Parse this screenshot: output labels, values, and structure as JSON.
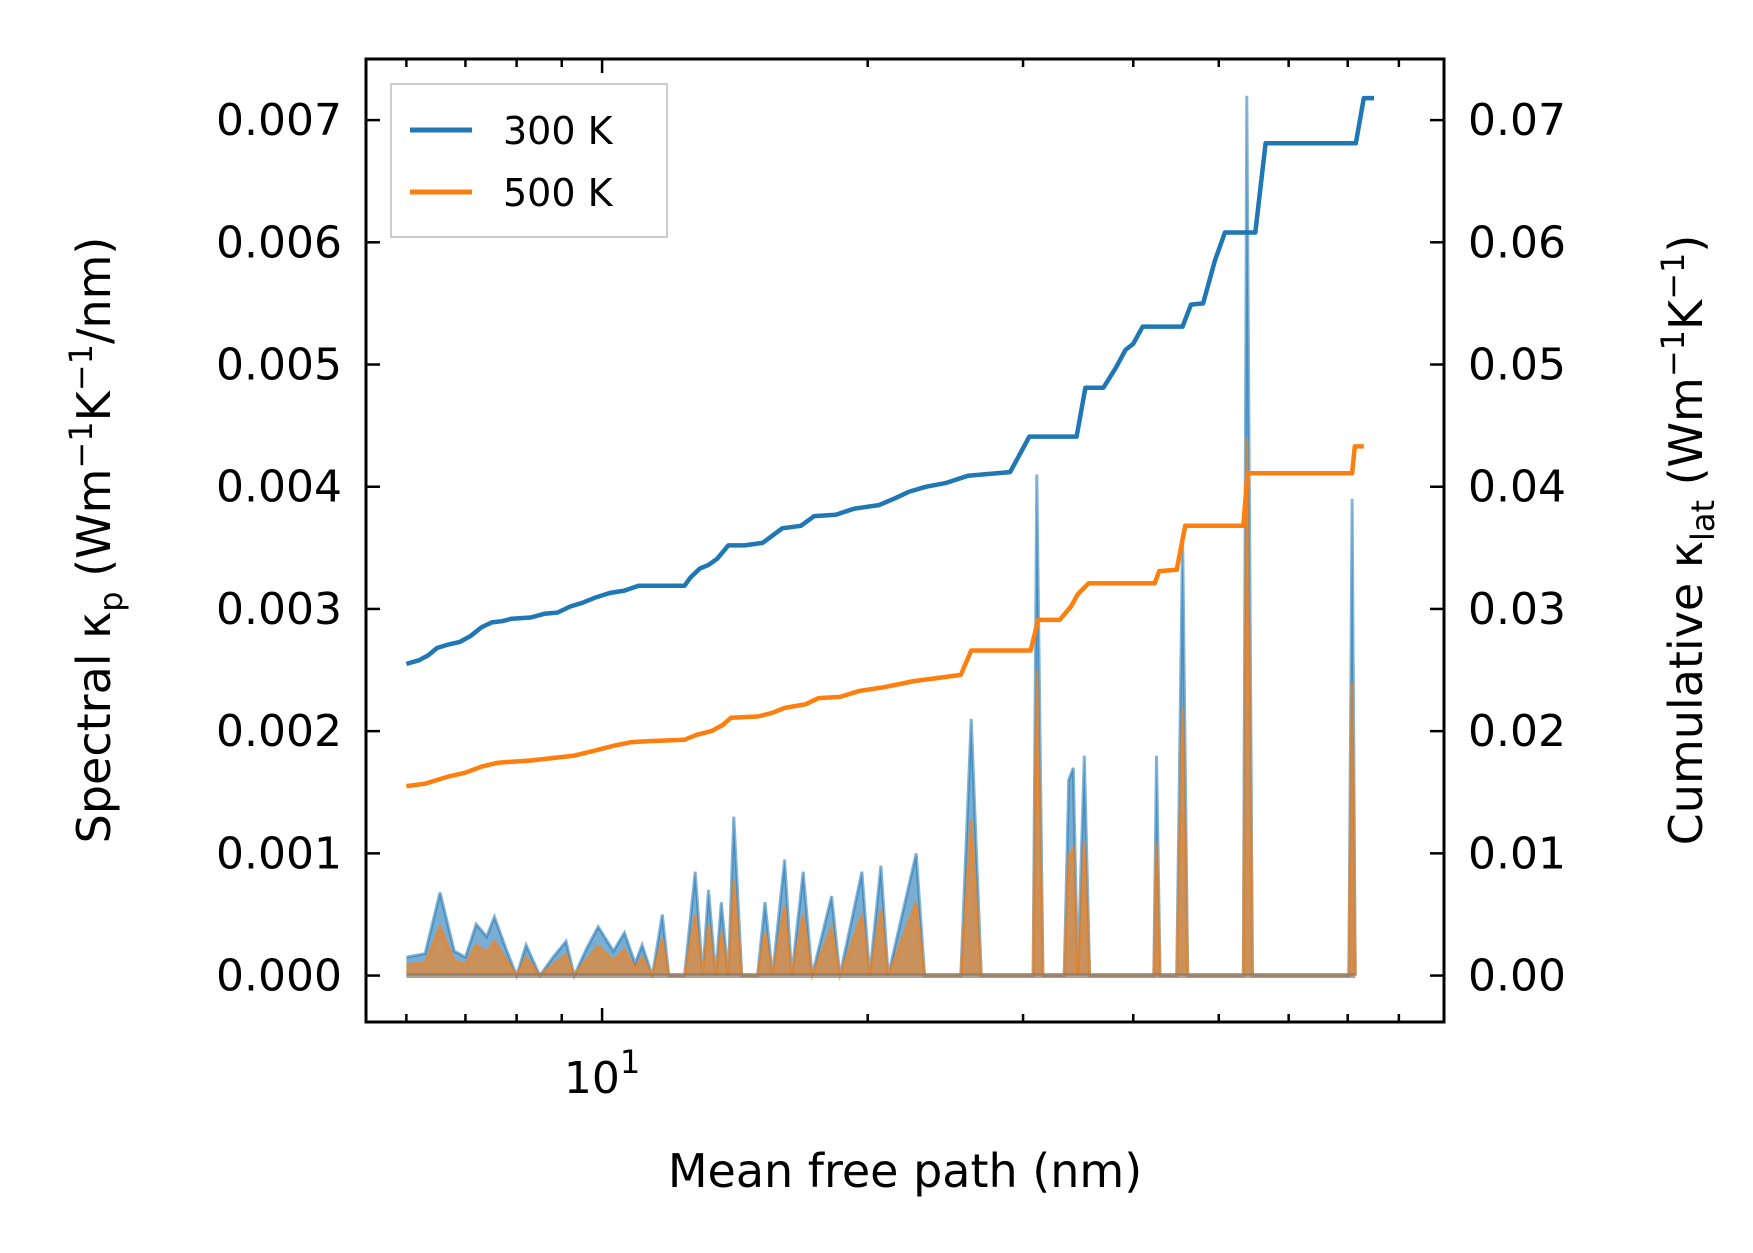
{
  "chart_data": {
    "type": "line",
    "xscale": "log",
    "xlim": [
      5.4,
      90
    ],
    "ylim": [
      -0.00038,
      0.0075
    ],
    "y2lim": [
      -0.0038,
      0.075
    ],
    "xlabel": "Mean free path (nm)",
    "ylabel_main": "Spectral κ",
    "ylabel_sub": "p",
    "ylabel_units_a": " (Wm",
    "ylabel_units_b": "−1",
    "ylabel_units_c": "K",
    "ylabel_units_d": "−1",
    "ylabel_units_e": "/nm)",
    "y2label_main": "Cumulative κ",
    "y2label_sub": "lat",
    "y2label_units_a": " (Wm",
    "y2label_units_b": "−1",
    "y2label_units_c": "K",
    "y2label_units_d": "−1",
    "y2label_units_e": ")",
    "x_tick_label_base": "10",
    "x_tick_label_exp": "1",
    "x_tick_value": 10,
    "y_ticks": [
      {
        "value": 0.0,
        "label": "0.000"
      },
      {
        "value": 0.001,
        "label": "0.001"
      },
      {
        "value": 0.002,
        "label": "0.002"
      },
      {
        "value": 0.003,
        "label": "0.003"
      },
      {
        "value": 0.004,
        "label": "0.004"
      },
      {
        "value": 0.005,
        "label": "0.005"
      },
      {
        "value": 0.006,
        "label": "0.006"
      },
      {
        "value": 0.007,
        "label": "0.007"
      }
    ],
    "y2_ticks": [
      {
        "value": 0.0,
        "label": "0.00"
      },
      {
        "value": 0.01,
        "label": "0.01"
      },
      {
        "value": 0.02,
        "label": "0.02"
      },
      {
        "value": 0.03,
        "label": "0.03"
      },
      {
        "value": 0.04,
        "label": "0.04"
      },
      {
        "value": 0.05,
        "label": "0.05"
      },
      {
        "value": 0.06,
        "label": "0.06"
      },
      {
        "value": 0.07,
        "label": "0.07"
      }
    ],
    "legend": {
      "position": "upper-left",
      "entries": [
        "300 K",
        "500 K"
      ]
    },
    "series": [
      {
        "name": "300 K",
        "color": "#1f77b4",
        "cumulative": [
          [
            6.0,
            0.0255
          ],
          [
            6.2,
            0.0258
          ],
          [
            6.35,
            0.0262
          ],
          [
            6.5,
            0.0268
          ],
          [
            6.7,
            0.0271
          ],
          [
            6.9,
            0.0273
          ],
          [
            7.1,
            0.0278
          ],
          [
            7.3,
            0.0285
          ],
          [
            7.5,
            0.0289
          ],
          [
            7.7,
            0.029
          ],
          [
            7.9,
            0.0292
          ],
          [
            8.3,
            0.0293
          ],
          [
            8.6,
            0.0296
          ],
          [
            8.9,
            0.0297
          ],
          [
            9.2,
            0.0302
          ],
          [
            9.5,
            0.0305
          ],
          [
            9.8,
            0.0309
          ],
          [
            10.2,
            0.0313
          ],
          [
            10.6,
            0.0315
          ],
          [
            11.0,
            0.0319
          ],
          [
            12.0,
            0.0319
          ],
          [
            12.4,
            0.0319
          ],
          [
            12.6,
            0.0326
          ],
          [
            12.9,
            0.0333
          ],
          [
            13.2,
            0.0336
          ],
          [
            13.5,
            0.0341
          ],
          [
            13.9,
            0.0352
          ],
          [
            14.5,
            0.0352
          ],
          [
            15.2,
            0.0354
          ],
          [
            15.6,
            0.036
          ],
          [
            16.0,
            0.0366
          ],
          [
            16.8,
            0.0368
          ],
          [
            17.4,
            0.0376
          ],
          [
            18.4,
            0.0377
          ],
          [
            19.3,
            0.0382
          ],
          [
            20.6,
            0.0385
          ],
          [
            21.4,
            0.039
          ],
          [
            22.3,
            0.0396
          ],
          [
            23.3,
            0.04
          ],
          [
            24.5,
            0.0403
          ],
          [
            26.0,
            0.0409
          ],
          [
            28.0,
            0.0411
          ],
          [
            29.0,
            0.0412
          ],
          [
            30.5,
            0.0441
          ],
          [
            33.0,
            0.0441
          ],
          [
            34.5,
            0.0441
          ],
          [
            35.3,
            0.0481
          ],
          [
            37.0,
            0.0481
          ],
          [
            38.2,
            0.0497
          ],
          [
            39.2,
            0.0512
          ],
          [
            40.0,
            0.0517
          ],
          [
            41.0,
            0.0531
          ],
          [
            44.0,
            0.0531
          ],
          [
            45.5,
            0.0531
          ],
          [
            46.5,
            0.0549
          ],
          [
            48.0,
            0.055
          ],
          [
            49.5,
            0.0585
          ],
          [
            50.8,
            0.0608
          ],
          [
            53.0,
            0.0608
          ],
          [
            55.0,
            0.0608
          ],
          [
            56.5,
            0.0681
          ],
          [
            60.0,
            0.0681
          ],
          [
            64.0,
            0.0681
          ],
          [
            69.0,
            0.0681
          ],
          [
            71.5,
            0.0681
          ],
          [
            73.0,
            0.0718
          ],
          [
            75.0,
            0.0718
          ]
        ],
        "spectral": [
          [
            6.0,
            0.00015
          ],
          [
            6.3,
            0.00018
          ],
          [
            6.55,
            0.00068
          ],
          [
            6.8,
            0.0002
          ],
          [
            7.0,
            0.00015
          ],
          [
            7.2,
            0.00042
          ],
          [
            7.4,
            0.00032
          ],
          [
            7.55,
            0.00048
          ],
          [
            7.8,
            0.0002
          ],
          [
            8.0,
            0.0
          ],
          [
            8.2,
            0.00025
          ],
          [
            8.5,
            0.0
          ],
          [
            8.8,
            0.00015
          ],
          [
            9.1,
            0.00028
          ],
          [
            9.3,
            0.0
          ],
          [
            9.6,
            0.00022
          ],
          [
            9.9,
            0.0004
          ],
          [
            10.3,
            0.0002
          ],
          [
            10.6,
            0.00035
          ],
          [
            10.9,
            0.0001
          ],
          [
            11.1,
            0.00025
          ],
          [
            11.4,
            0.0
          ],
          [
            11.7,
            0.0005
          ],
          [
            11.9,
            0.0
          ],
          [
            12.4,
            0.0
          ],
          [
            12.75,
            0.00085
          ],
          [
            13.0,
            0.0
          ],
          [
            13.2,
            0.0007
          ],
          [
            13.45,
            0.0
          ],
          [
            13.65,
            0.0006
          ],
          [
            13.9,
            0.0
          ],
          [
            14.1,
            0.0013
          ],
          [
            14.4,
            0.0
          ],
          [
            15.0,
            0.0
          ],
          [
            15.3,
            0.0006
          ],
          [
            15.6,
            0.0
          ],
          [
            16.1,
            0.00095
          ],
          [
            16.4,
            0.0
          ],
          [
            16.9,
            0.00085
          ],
          [
            17.3,
            0.0
          ],
          [
            18.2,
            0.00065
          ],
          [
            18.6,
            0.0
          ],
          [
            19.7,
            0.00085
          ],
          [
            20.1,
            0.0
          ],
          [
            20.7,
            0.0009
          ],
          [
            21.1,
            0.0
          ],
          [
            22.7,
            0.001
          ],
          [
            23.2,
            0.0
          ],
          [
            25.5,
            0.0
          ],
          [
            26.2,
            0.0021
          ],
          [
            26.9,
            0.0
          ],
          [
            30.8,
            0.0
          ],
          [
            31.1,
            0.0041
          ],
          [
            31.6,
            0.0
          ],
          [
            33.4,
            0.0
          ],
          [
            33.8,
            0.0016
          ],
          [
            34.2,
            0.0017
          ],
          [
            34.6,
            0.0
          ],
          [
            35.2,
            0.0018
          ],
          [
            35.7,
            0.0
          ],
          [
            42.2,
            0.0
          ],
          [
            42.5,
            0.0018
          ],
          [
            42.9,
            0.0
          ],
          [
            44.8,
            0.0
          ],
          [
            45.5,
            0.0036
          ],
          [
            46.1,
            0.0
          ],
          [
            53.3,
            0.0
          ],
          [
            53.8,
            0.0072
          ],
          [
            54.6,
            0.0
          ],
          [
            70.2,
            0.0
          ],
          [
            70.8,
            0.0039
          ],
          [
            71.4,
            0.0
          ]
        ]
      },
      {
        "name": "500 K",
        "color": "#ff7f0e",
        "cumulative": [
          [
            6.0,
            0.0155
          ],
          [
            6.3,
            0.0157
          ],
          [
            6.5,
            0.016
          ],
          [
            6.7,
            0.0163
          ],
          [
            7.0,
            0.0166
          ],
          [
            7.3,
            0.0171
          ],
          [
            7.6,
            0.0174
          ],
          [
            7.9,
            0.0175
          ],
          [
            8.3,
            0.0176
          ],
          [
            8.8,
            0.0178
          ],
          [
            9.3,
            0.018
          ],
          [
            9.8,
            0.0184
          ],
          [
            10.3,
            0.0188
          ],
          [
            10.8,
            0.0191
          ],
          [
            11.5,
            0.0192
          ],
          [
            12.4,
            0.0193
          ],
          [
            12.8,
            0.0197
          ],
          [
            13.3,
            0.02
          ],
          [
            13.7,
            0.0205
          ],
          [
            14.0,
            0.0211
          ],
          [
            15.0,
            0.0212
          ],
          [
            15.6,
            0.0215
          ],
          [
            16.1,
            0.0219
          ],
          [
            17.0,
            0.0222
          ],
          [
            17.6,
            0.0227
          ],
          [
            18.6,
            0.0228
          ],
          [
            19.6,
            0.0233
          ],
          [
            20.9,
            0.0236
          ],
          [
            22.6,
            0.0241
          ],
          [
            24.3,
            0.0244
          ],
          [
            25.5,
            0.0246
          ],
          [
            26.2,
            0.0266
          ],
          [
            28.5,
            0.0266
          ],
          [
            30.6,
            0.0266
          ],
          [
            31.2,
            0.0291
          ],
          [
            33.0,
            0.0291
          ],
          [
            34.0,
            0.0302
          ],
          [
            34.6,
            0.0312
          ],
          [
            35.6,
            0.0321
          ],
          [
            40.0,
            0.0321
          ],
          [
            42.3,
            0.0321
          ],
          [
            42.8,
            0.0331
          ],
          [
            44.8,
            0.0332
          ],
          [
            45.8,
            0.0368
          ],
          [
            50.0,
            0.0368
          ],
          [
            53.3,
            0.0368
          ],
          [
            53.9,
            0.0411
          ],
          [
            60.0,
            0.0411
          ],
          [
            66.0,
            0.0411
          ],
          [
            70.8,
            0.0411
          ],
          [
            71.3,
            0.0433
          ],
          [
            73.0,
            0.0433
          ]
        ],
        "spectral": [
          [
            6.0,
            9e-05
          ],
          [
            6.3,
            0.0001
          ],
          [
            6.55,
            0.0004
          ],
          [
            6.8,
            0.00012
          ],
          [
            7.0,
            9e-05
          ],
          [
            7.2,
            0.00025
          ],
          [
            7.4,
            0.00019
          ],
          [
            7.55,
            0.00028
          ],
          [
            7.8,
            0.00012
          ],
          [
            8.0,
            0.0
          ],
          [
            8.2,
            0.00015
          ],
          [
            8.5,
            0.0
          ],
          [
            8.8,
            9e-05
          ],
          [
            9.1,
            0.00017
          ],
          [
            9.3,
            0.0
          ],
          [
            9.6,
            0.00013
          ],
          [
            9.9,
            0.00024
          ],
          [
            10.3,
            0.00012
          ],
          [
            10.6,
            0.00021
          ],
          [
            10.9,
            6e-05
          ],
          [
            11.1,
            0.00015
          ],
          [
            11.4,
            0.0
          ],
          [
            11.7,
            0.0003
          ],
          [
            11.9,
            0.0
          ],
          [
            12.4,
            0.0
          ],
          [
            12.75,
            0.0005
          ],
          [
            13.0,
            0.0
          ],
          [
            13.2,
            0.00042
          ],
          [
            13.45,
            0.0
          ],
          [
            13.65,
            0.00036
          ],
          [
            13.9,
            0.0
          ],
          [
            14.1,
            0.00078
          ],
          [
            14.4,
            0.0
          ],
          [
            15.0,
            0.0
          ],
          [
            15.3,
            0.00036
          ],
          [
            15.6,
            0.0
          ],
          [
            16.1,
            0.00057
          ],
          [
            16.4,
            0.0
          ],
          [
            16.9,
            0.0005
          ],
          [
            17.3,
            0.0
          ],
          [
            18.2,
            0.00039
          ],
          [
            18.6,
            0.0
          ],
          [
            19.7,
            0.0005
          ],
          [
            20.1,
            0.0
          ],
          [
            20.7,
            0.00054
          ],
          [
            21.1,
            0.0
          ],
          [
            22.7,
            0.0006
          ],
          [
            23.2,
            0.0
          ],
          [
            25.5,
            0.0
          ],
          [
            26.2,
            0.00128
          ],
          [
            26.9,
            0.0
          ],
          [
            30.8,
            0.0
          ],
          [
            31.1,
            0.0025
          ],
          [
            31.6,
            0.0
          ],
          [
            33.4,
            0.0
          ],
          [
            33.8,
            0.00098
          ],
          [
            34.2,
            0.00104
          ],
          [
            34.6,
            0.0
          ],
          [
            35.2,
            0.0011
          ],
          [
            35.7,
            0.0
          ],
          [
            42.2,
            0.0
          ],
          [
            42.5,
            0.0011
          ],
          [
            42.9,
            0.0
          ],
          [
            44.8,
            0.0
          ],
          [
            45.5,
            0.0022
          ],
          [
            46.1,
            0.0
          ],
          [
            53.3,
            0.0
          ],
          [
            53.8,
            0.0044
          ],
          [
            54.6,
            0.0
          ],
          [
            70.2,
            0.0
          ],
          [
            70.8,
            0.0024
          ],
          [
            71.4,
            0.0
          ]
        ]
      }
    ]
  }
}
